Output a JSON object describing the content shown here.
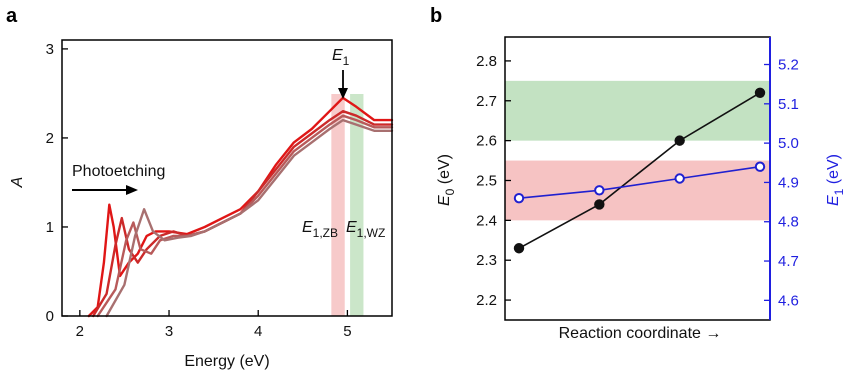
{
  "panels": {
    "a": "a",
    "b": "b"
  },
  "colors": {
    "red_band": "#f4b8b8",
    "green_band": "#b9ddb7",
    "series_red": "#e01616",
    "series_mid": "#c24a4a",
    "series_brown": "#a86a6a",
    "black_series": "#111111",
    "blue_series": "#2020d0"
  },
  "chart_data": [
    {
      "type": "line",
      "panel": "a",
      "xlabel": "Energy (eV)",
      "ylabel": "A",
      "xlim": [
        1.8,
        5.5
      ],
      "ylim": [
        0,
        3.1
      ],
      "xticks": [
        "2",
        "3",
        "4",
        "5"
      ],
      "yticks": [
        "0",
        "1",
        "2",
        "3"
      ],
      "annotations": {
        "photoetching": "Photoetching",
        "e1_main": "E",
        "e1_main_sub": "1",
        "e1zb": "E",
        "e1zb_sub": "1,ZB",
        "e1wz": "E",
        "e1wz_sub": "1,WZ"
      },
      "bands": [
        {
          "x_from": 4.82,
          "x_to": 4.97,
          "color": "#f4b8b8"
        },
        {
          "x_from": 5.03,
          "x_to": 5.18,
          "color": "#b9ddb7"
        }
      ],
      "series": [
        {
          "color": "#e01616",
          "x": [
            2.1,
            2.2,
            2.27,
            2.33,
            2.38,
            2.45,
            2.55,
            2.65,
            2.75,
            2.85,
            3.0,
            3.2,
            3.4,
            3.6,
            3.8,
            4.0,
            4.2,
            4.4,
            4.6,
            4.8,
            4.95,
            5.1,
            5.3,
            5.5
          ],
          "y": [
            0.0,
            0.1,
            0.6,
            1.25,
            1.0,
            0.45,
            0.6,
            0.7,
            0.9,
            0.95,
            0.95,
            0.92,
            1.0,
            1.1,
            1.2,
            1.4,
            1.7,
            1.95,
            2.1,
            2.3,
            2.45,
            2.35,
            2.2,
            2.2
          ]
        },
        {
          "color": "#cc2a2a",
          "x": [
            2.15,
            2.3,
            2.4,
            2.47,
            2.55,
            2.65,
            2.75,
            2.9,
            3.05,
            3.2,
            3.4,
            3.6,
            3.8,
            4.0,
            4.2,
            4.4,
            4.6,
            4.8,
            4.95,
            5.1,
            5.3,
            5.5
          ],
          "y": [
            0.0,
            0.25,
            0.8,
            1.1,
            0.75,
            0.6,
            0.75,
            0.9,
            0.95,
            0.9,
            0.95,
            1.05,
            1.15,
            1.4,
            1.65,
            1.9,
            2.05,
            2.2,
            2.3,
            2.25,
            2.15,
            2.15
          ]
        },
        {
          "color": "#b85a5a",
          "x": [
            2.2,
            2.4,
            2.52,
            2.6,
            2.68,
            2.8,
            2.9,
            3.05,
            3.2,
            3.4,
            3.6,
            3.8,
            4.0,
            4.2,
            4.4,
            4.6,
            4.8,
            4.95,
            5.1,
            5.3,
            5.5
          ],
          "y": [
            0.0,
            0.3,
            0.85,
            1.05,
            0.75,
            0.7,
            0.85,
            0.9,
            0.9,
            0.95,
            1.05,
            1.15,
            1.35,
            1.6,
            1.85,
            2.0,
            2.15,
            2.25,
            2.2,
            2.12,
            2.12
          ]
        },
        {
          "color": "#a87070",
          "x": [
            2.3,
            2.5,
            2.62,
            2.72,
            2.82,
            2.95,
            3.1,
            3.25,
            3.4,
            3.6,
            3.8,
            4.0,
            4.2,
            4.4,
            4.6,
            4.8,
            4.95,
            5.1,
            5.3,
            5.5
          ],
          "y": [
            0.0,
            0.35,
            0.9,
            1.2,
            0.95,
            0.85,
            0.88,
            0.9,
            0.95,
            1.05,
            1.15,
            1.3,
            1.55,
            1.8,
            1.95,
            2.1,
            2.2,
            2.15,
            2.08,
            2.08
          ]
        }
      ]
    },
    {
      "type": "scatter",
      "panel": "b",
      "xlabel": "Reaction coordinate →",
      "ylabel_left": "E",
      "ylabel_left_sub": "0",
      "ylabel_left_unit": " (eV)",
      "ylabel_right": "E",
      "ylabel_right_sub": "1",
      "ylabel_right_unit": " (eV)",
      "ylim_left": [
        2.15,
        2.86
      ],
      "ylim_right": [
        4.55,
        5.27
      ],
      "yticks_left": [
        "2.2",
        "2.3",
        "2.4",
        "2.5",
        "2.6",
        "2.7",
        "2.8"
      ],
      "yticks_right": [
        "4.6",
        "4.7",
        "4.8",
        "4.9",
        "5.0",
        "5.1",
        "5.2"
      ],
      "bands": [
        {
          "axis": "left",
          "y_from": 2.6,
          "y_to": 2.75,
          "color": "#b9ddb7"
        },
        {
          "axis": "left",
          "y_from": 2.4,
          "y_to": 2.55,
          "color": "#f4b8b8"
        }
      ],
      "series": [
        {
          "axis": "left",
          "marker": "filled",
          "color": "#111111",
          "x": [
            1,
            2,
            3,
            4
          ],
          "y": [
            2.33,
            2.44,
            2.6,
            2.72
          ]
        },
        {
          "axis": "right",
          "marker": "open",
          "color": "#2020d0",
          "x": [
            1,
            2,
            3,
            4
          ],
          "y": [
            4.86,
            4.88,
            4.91,
            4.94
          ]
        }
      ]
    }
  ]
}
